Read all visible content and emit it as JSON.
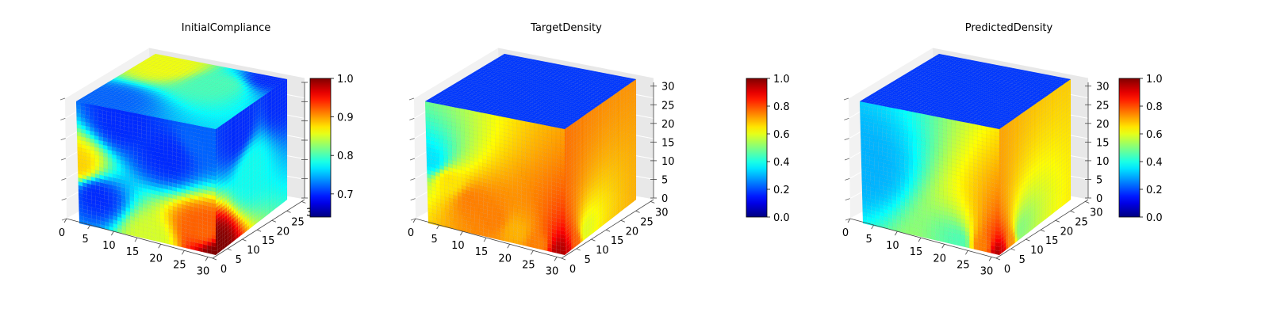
{
  "chart_data": [
    {
      "type": "heatmap",
      "title": "InitialCompliance",
      "x_ticks": [
        "0",
        "5",
        "10",
        "15",
        "20",
        "25",
        "30"
      ],
      "y_ticks": [
        "0",
        "5",
        "10",
        "15",
        "20",
        "25",
        "30"
      ],
      "z_ticks": [],
      "grid_size": 32,
      "colormap": "jet",
      "colorbar": {
        "min": 0.64,
        "max": 1.0,
        "ticks": [
          "0.7",
          "0.8",
          "0.9",
          "1.0"
        ],
        "tick_values": [
          0.7,
          0.8,
          0.9,
          1.0
        ]
      },
      "front_face": [
        {
          "x": 0,
          "z": 15,
          "value": 0.88
        },
        {
          "x": 4,
          "z": 8,
          "value": 0.7
        },
        {
          "x": 16,
          "z": 0,
          "value": 0.85
        },
        {
          "x": 31,
          "z": 0,
          "value": 1.0
        },
        {
          "x": 28,
          "z": 5,
          "value": 0.92
        },
        {
          "x": 20,
          "z": 22,
          "value": 0.7
        },
        {
          "x": 10,
          "z": 28,
          "value": 0.7
        },
        {
          "x": 28,
          "z": 28,
          "value": 0.72
        }
      ],
      "top_face": [
        {
          "x": 6,
          "y": 26,
          "value": 0.86
        },
        {
          "x": 20,
          "y": 22,
          "value": 0.8
        },
        {
          "x": 28,
          "y": 30,
          "value": 0.7
        },
        {
          "x": 4,
          "y": 4,
          "value": 0.72
        }
      ],
      "side_face": [
        {
          "y": 0,
          "z": 0,
          "value": 1.0
        },
        {
          "y": 15,
          "z": 15,
          "value": 0.78
        },
        {
          "y": 28,
          "z": 28,
          "value": 0.7
        },
        {
          "y": 10,
          "z": 26,
          "value": 0.7
        }
      ]
    },
    {
      "type": "heatmap",
      "title": "TargetDensity",
      "x_ticks": [
        "0",
        "5",
        "10",
        "15",
        "20",
        "25",
        "30"
      ],
      "y_ticks": [
        "0",
        "5",
        "10",
        "15",
        "20",
        "25",
        "30"
      ],
      "z_ticks": [
        "0",
        "5",
        "10",
        "15",
        "20",
        "25",
        "30"
      ],
      "grid_size": 32,
      "colormap": "jet",
      "colorbar": {
        "min": 0.0,
        "max": 1.0,
        "ticks": [
          "0.0",
          "0.2",
          "0.4",
          "0.6",
          "0.8",
          "1.0"
        ],
        "tick_values": [
          0.0,
          0.2,
          0.4,
          0.6,
          0.8,
          1.0
        ]
      },
      "front_face": [
        {
          "x": 1,
          "z": 16,
          "value": 0.35
        },
        {
          "x": 5,
          "z": 12,
          "value": 0.65
        },
        {
          "x": 10,
          "z": 8,
          "value": 0.75
        },
        {
          "x": 15,
          "z": 5,
          "value": 0.75
        },
        {
          "x": 20,
          "z": 3,
          "value": 0.7
        },
        {
          "x": 25,
          "z": 1,
          "value": 0.75
        },
        {
          "x": 30,
          "z": 0,
          "value": 0.95
        }
      ],
      "top_face": [
        {
          "x": 6,
          "y": 28,
          "value": 0.2
        }
      ],
      "side_face": [
        {
          "y": 1,
          "z": 0,
          "value": 1.0
        },
        {
          "y": 5,
          "z": 1,
          "value": 0.85
        },
        {
          "y": 9,
          "z": 2,
          "value": 0.65
        }
      ]
    },
    {
      "type": "heatmap",
      "title": "PredictedDensity",
      "x_ticks": [
        "0",
        "5",
        "10",
        "15",
        "20",
        "25",
        "30"
      ],
      "y_ticks": [
        "0",
        "5",
        "10",
        "15",
        "20",
        "25",
        "30"
      ],
      "z_ticks": [
        "0",
        "5",
        "10",
        "15",
        "20",
        "25",
        "30"
      ],
      "grid_size": 32,
      "colormap": "jet",
      "colorbar": {
        "min": 0.0,
        "max": 1.0,
        "ticks": [
          "0.0",
          "0.2",
          "0.4",
          "0.6",
          "0.8",
          "1.0"
        ],
        "tick_values": [
          0.0,
          0.2,
          0.4,
          0.6,
          0.8,
          1.0
        ]
      },
      "front_face": [
        {
          "x": 0,
          "z": 15,
          "value": 0.3
        },
        {
          "x": 22,
          "z": 1,
          "value": 0.45
        },
        {
          "x": 27,
          "z": 1,
          "value": 0.75
        },
        {
          "x": 31,
          "z": 0,
          "value": 0.95
        }
      ],
      "top_face": [
        {
          "x": 6,
          "y": 28,
          "value": 0.2
        }
      ],
      "side_face": [
        {
          "y": 1,
          "z": 0,
          "value": 1.0
        },
        {
          "y": 5,
          "z": 1,
          "value": 0.8
        },
        {
          "y": 9,
          "z": 2,
          "value": 0.55
        }
      ]
    }
  ]
}
